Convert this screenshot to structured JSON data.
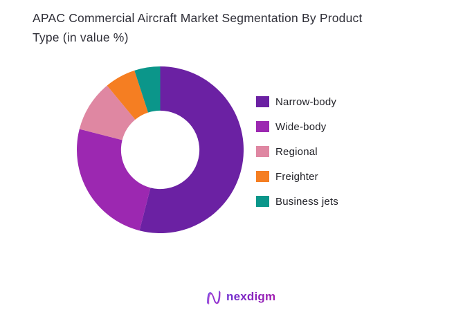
{
  "header": {
    "title_line1": "APAC Commercial Aircraft Market Segmentation By Product",
    "title_line2": "Type (in value %)"
  },
  "chart_data": {
    "type": "pie",
    "subtype": "donut",
    "title": "APAC Commercial Aircraft Market Segmentation By Product Type (in value %)",
    "unit": "value %",
    "labels": [
      "Narrow-body",
      "Wide-body",
      "Regional",
      "Freighter",
      "Business jets"
    ],
    "values": [
      54,
      25,
      10,
      6,
      5
    ],
    "colors": [
      "#6B21A3",
      "#9C28B1",
      "#DF87A2",
      "#F57E22",
      "#0B968A"
    ],
    "donut_hole_ratio": 0.47,
    "start_angle_deg": 0,
    "direction": "clockwise",
    "legend_position": "right",
    "data_labels_shown": false
  },
  "footer": {
    "brand": "nexdigm",
    "brand_icon": "nexdigm-wave-n-icon",
    "brand_color_start": "#6D2FD0",
    "brand_color_end": "#A21CAF"
  }
}
